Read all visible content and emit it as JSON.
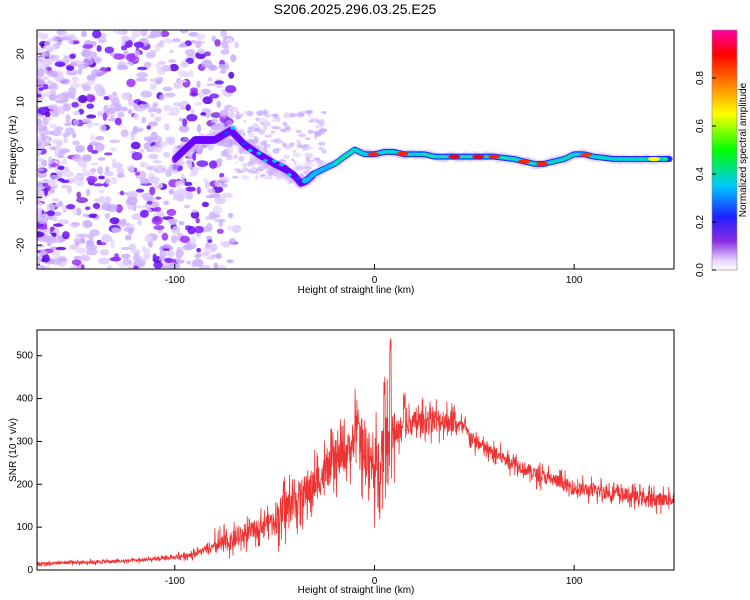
{
  "title": "S206.2025.296.03.25.E25",
  "chart_data": [
    {
      "type": "heatmap",
      "name": "spectrogram",
      "xlabel": "Height of straight line (km)",
      "ylabel": "Frequency (Hz)",
      "xlim": [
        -169,
        150
      ],
      "ylim": [
        -25,
        25
      ],
      "xticks": [
        -100,
        0,
        100
      ],
      "xtick_labels": [
        "-100",
        "0",
        "100"
      ],
      "yticks": [
        -20,
        -10,
        0,
        10,
        20
      ],
      "ytick_labels": [
        "-20",
        "-10",
        "0",
        "10",
        "20"
      ],
      "ridge": {
        "x": [
          -100,
          -90,
          -80,
          -72,
          -65,
          -58,
          -50,
          -45,
          -40,
          -37,
          -34,
          -30,
          -25,
          -20,
          -15,
          -10,
          -5,
          0,
          5,
          10,
          15,
          20,
          25,
          30,
          40,
          50,
          60,
          70,
          75,
          80,
          85,
          90,
          95,
          100,
          105,
          110,
          120,
          130,
          140,
          148
        ],
        "y": [
          -2,
          2,
          2,
          4,
          1,
          -1,
          -3,
          -4,
          -5.5,
          -7,
          -6.5,
          -5,
          -4,
          -3,
          -1.5,
          0,
          -1,
          -1,
          -0.5,
          -0.5,
          -1,
          -1,
          -1,
          -1.5,
          -1.5,
          -1.5,
          -1.5,
          -2,
          -2.5,
          -3,
          -3,
          -2.5,
          -2,
          -1,
          -1,
          -1.5,
          -2,
          -2,
          -2,
          -2
        ]
      },
      "colorbar": {
        "label": "Normalized spectral amplitude",
        "ticks": [
          0,
          0.2,
          0.4,
          0.6,
          0.8
        ],
        "tick_labels": [
          "0.0",
          "0.2",
          "0.4",
          "0.6",
          "0.8"
        ],
        "range": [
          0,
          1
        ]
      }
    },
    {
      "type": "line",
      "name": "snr",
      "xlabel": "Height of straight line (km)",
      "ylabel": "SNR (10 * v/v)",
      "xlim": [
        -169,
        150
      ],
      "ylim": [
        0,
        560
      ],
      "xticks": [
        -100,
        0,
        100
      ],
      "xtick_labels": [
        "-100",
        "0",
        "100"
      ],
      "yticks": [
        0,
        100,
        200,
        300,
        400,
        500
      ],
      "ytick_labels": [
        "0",
        "100",
        "200",
        "300",
        "400",
        "500"
      ],
      "color": "#ee3333",
      "series": [
        {
          "name": "SNR",
          "x": [
            -169,
            -150,
            -130,
            -110,
            -100,
            -90,
            -80,
            -70,
            -60,
            -50,
            -40,
            -30,
            -20,
            -15,
            -10,
            -5,
            0,
            3,
            5,
            8,
            10,
            15,
            20,
            25,
            30,
            35,
            40,
            45,
            50,
            60,
            70,
            80,
            90,
            100,
            110,
            120,
            130,
            140,
            150
          ],
          "y": [
            15,
            18,
            20,
            25,
            30,
            38,
            55,
            70,
            95,
            120,
            160,
            200,
            250,
            270,
            300,
            290,
            230,
            260,
            300,
            340,
            320,
            330,
            345,
            345,
            350,
            350,
            345,
            330,
            300,
            270,
            250,
            225,
            210,
            190,
            185,
            180,
            170,
            165,
            165
          ],
          "spikes": [
            {
              "x": 5,
              "y": 460
            },
            {
              "x": 8,
              "y": 560
            },
            {
              "x": -8,
              "y": 400
            },
            {
              "x": 15,
              "y": 420
            },
            {
              "x": 28,
              "y": 400
            }
          ]
        }
      ]
    }
  ]
}
